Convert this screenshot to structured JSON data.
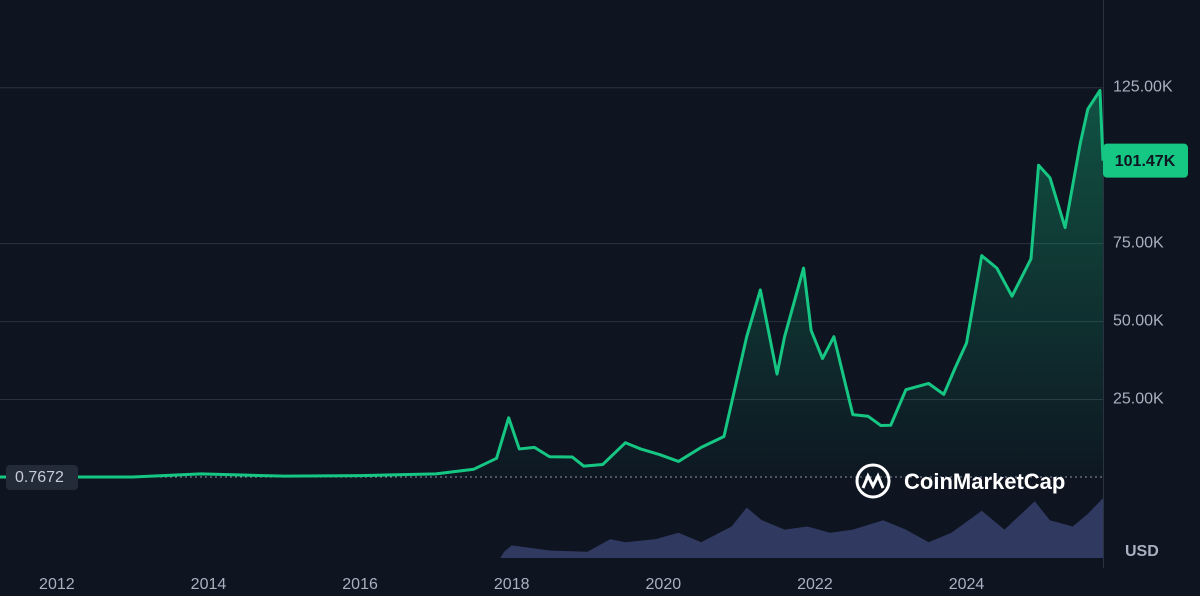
{
  "chart_data": {
    "type": "line",
    "x": [
      2011.25,
      2012.0,
      2013.0,
      2013.9,
      2014.5,
      2015.0,
      2016.0,
      2017.0,
      2017.5,
      2017.8,
      2017.96,
      2018.1,
      2018.3,
      2018.5,
      2018.8,
      2018.95,
      2019.2,
      2019.5,
      2019.7,
      2019.95,
      2020.2,
      2020.5,
      2020.8,
      2020.95,
      2021.1,
      2021.28,
      2021.5,
      2021.6,
      2021.85,
      2021.95,
      2022.1,
      2022.25,
      2022.4,
      2022.5,
      2022.7,
      2022.87,
      2023.0,
      2023.2,
      2023.5,
      2023.7,
      2023.85,
      2024.0,
      2024.2,
      2024.4,
      2024.6,
      2024.85,
      2024.95,
      2025.1,
      2025.3,
      2025.5,
      2025.6,
      2025.76,
      2025.8
    ],
    "values": [
      0.7672,
      5,
      13,
      1000,
      600,
      300,
      430,
      1000,
      2500,
      6000,
      19000,
      9000,
      9500,
      6500,
      6400,
      3500,
      4000,
      11000,
      9000,
      7200,
      5000,
      9500,
      13000,
      29000,
      45000,
      60000,
      33000,
      45000,
      67000,
      47000,
      38000,
      45000,
      30000,
      20000,
      19500,
      16500,
      16600,
      28000,
      30000,
      26500,
      35000,
      43000,
      71000,
      67000,
      58000,
      70000,
      100000,
      96000,
      80000,
      107000,
      118000,
      124000,
      101470
    ],
    "color": "#16c784",
    "start_value": 0.7672,
    "end_value": {
      "value": 101470,
      "label": "101.47K"
    },
    "xlim": [
      2011.25,
      2025.8
    ],
    "xticks": [
      2012,
      2014,
      2016,
      2018,
      2020,
      2022,
      2024
    ],
    "ylim": [
      0,
      153000
    ],
    "yticks": [
      {
        "value": 25000,
        "label": "25.00K"
      },
      {
        "value": 50000,
        "label": "50.00K"
      },
      {
        "value": 75000,
        "label": "75.00K"
      },
      {
        "value": 125000,
        "label": "125.00K"
      }
    ],
    "grid": true,
    "volume": {
      "x": [
        2017.85,
        2017.9,
        2018.0,
        2018.5,
        2019.0,
        2019.3,
        2019.5,
        2019.9,
        2020.2,
        2020.5,
        2020.9,
        2021.1,
        2021.3,
        2021.6,
        2021.9,
        2022.2,
        2022.5,
        2022.9,
        2023.2,
        2023.5,
        2023.8,
        2024.2,
        2024.5,
        2024.9,
        2025.1,
        2025.4,
        2025.6,
        2025.8
      ],
      "values": [
        0,
        10,
        20,
        12,
        10,
        30,
        25,
        30,
        40,
        25,
        50,
        80,
        60,
        45,
        50,
        40,
        45,
        60,
        45,
        25,
        40,
        75,
        45,
        90,
        60,
        50,
        70,
        95
      ],
      "color": "#3a4270"
    },
    "y2lim": [
      0,
      100
    ],
    "watermark": "CoinMarketCap",
    "currency": "USD"
  }
}
